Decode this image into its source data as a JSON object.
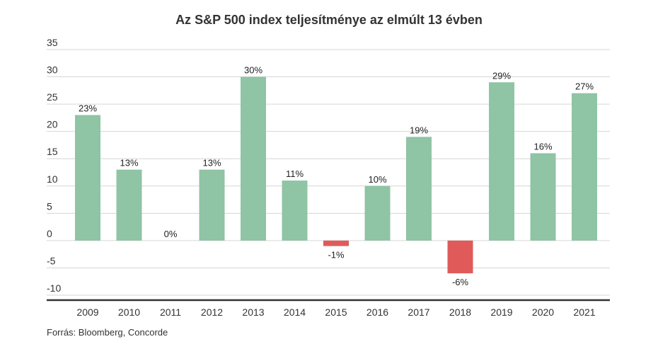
{
  "chart_data": {
    "type": "bar",
    "title": "Az S&P 500 index teljesítménye az elmúlt 13 évben",
    "categories": [
      "2009",
      "2010",
      "2011",
      "2012",
      "2013",
      "2014",
      "2015",
      "2016",
      "2017",
      "2018",
      "2019",
      "2020",
      "2021"
    ],
    "values": [
      23,
      13,
      0,
      13,
      30,
      11,
      -1,
      10,
      19,
      -6,
      29,
      16,
      27
    ],
    "data_labels": [
      "23%",
      "13%",
      "0%",
      "13%",
      "30%",
      "11%",
      "-1%",
      "10%",
      "19%",
      "-6%",
      "29%",
      "16%",
      "27%"
    ],
    "ylim": [
      -10,
      35
    ],
    "yticks": [
      35,
      30,
      25,
      20,
      15,
      10,
      5,
      0,
      -5,
      -10
    ],
    "xlabel": "",
    "ylabel": "",
    "grid": true,
    "colors": {
      "positive": "#8fc4a5",
      "negative": "#e05a5a"
    }
  },
  "source": "Forrás: Bloomberg, Concorde"
}
